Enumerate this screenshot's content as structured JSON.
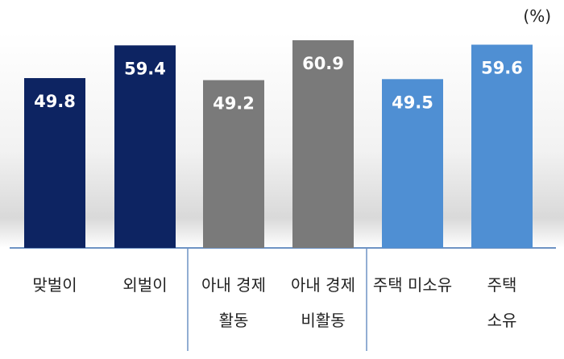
{
  "unit": "(%)",
  "chart_data": {
    "type": "bar",
    "title": "",
    "xlabel": "",
    "ylabel": "",
    "ylim": [
      0,
      60.9
    ],
    "categories": [
      "맞벌이",
      "외벌이",
      "아내 경제\n활동",
      "아내 경제\n비활동",
      "주택 미소유",
      "주택\n소유"
    ],
    "category_lines": [
      [
        "맞벌이"
      ],
      [
        "외벌이"
      ],
      [
        "아내 경제",
        "활동"
      ],
      [
        "아내 경제",
        "비활동"
      ],
      [
        "주택 미소유"
      ],
      [
        "주택",
        "소유"
      ]
    ],
    "values": [
      49.8,
      59.4,
      49.2,
      60.9,
      49.5,
      59.6
    ],
    "value_labels": [
      "49.8",
      "59.4",
      "49.2",
      "60.9",
      "49.5",
      "59.6"
    ],
    "colors": [
      "#0d2462",
      "#0d2462",
      "#7a7a7a",
      "#7a7a7a",
      "#4f8fd3",
      "#4f8fd3"
    ],
    "grid": false,
    "legend": "none"
  }
}
